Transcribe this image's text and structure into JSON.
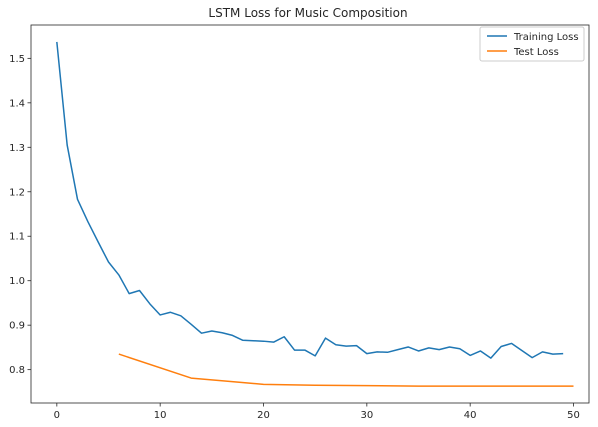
{
  "chart_data": {
    "type": "line",
    "title": "LSTM Loss for Music Composition",
    "xlabel": "",
    "ylabel": "",
    "xlim": [
      -2.5,
      51.5
    ],
    "ylim": [
      0.725,
      1.575
    ],
    "xticks": [
      0,
      10,
      20,
      30,
      40,
      50
    ],
    "yticks": [
      0.8,
      0.9,
      1.0,
      1.1,
      1.2,
      1.3,
      1.4,
      1.5
    ],
    "grid": false,
    "legend_position": "top-right",
    "series": [
      {
        "name": "Training Loss",
        "color": "#1f77b4",
        "x": [
          0,
          1,
          2,
          3,
          4,
          5,
          6,
          7,
          8,
          9,
          10,
          11,
          12,
          13,
          14,
          15,
          16,
          17,
          18,
          19,
          20,
          21,
          22,
          23,
          24,
          25,
          26,
          27,
          28,
          29,
          30,
          31,
          32,
          33,
          34,
          35,
          36,
          37,
          38,
          39,
          40,
          41,
          42,
          43,
          44,
          45,
          46,
          47,
          48,
          49
        ],
        "values": [
          1.537,
          1.305,
          1.183,
          1.133,
          1.087,
          1.042,
          1.013,
          0.971,
          0.978,
          0.948,
          0.923,
          0.929,
          0.921,
          0.902,
          0.882,
          0.887,
          0.883,
          0.877,
          0.866,
          0.865,
          0.864,
          0.862,
          0.874,
          0.844,
          0.844,
          0.831,
          0.871,
          0.856,
          0.853,
          0.854,
          0.836,
          0.84,
          0.839,
          0.845,
          0.851,
          0.842,
          0.849,
          0.845,
          0.851,
          0.847,
          0.832,
          0.842,
          0.826,
          0.852,
          0.859,
          0.843,
          0.827,
          0.84,
          0.835,
          0.836
        ]
      },
      {
        "name": "Test Loss",
        "color": "#ff7f0e",
        "x": [
          6,
          13,
          20,
          25,
          30,
          35,
          40,
          45,
          50
        ],
        "values": [
          0.835,
          0.781,
          0.767,
          0.765,
          0.764,
          0.763,
          0.763,
          0.763,
          0.763
        ]
      }
    ]
  }
}
